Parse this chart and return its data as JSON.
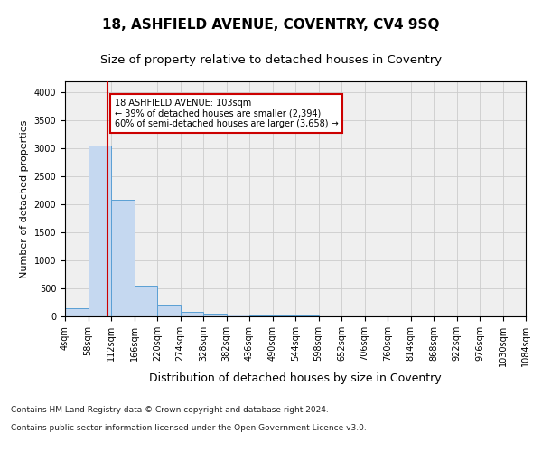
{
  "title1": "18, ASHFIELD AVENUE, COVENTRY, CV4 9SQ",
  "title2": "Size of property relative to detached houses in Coventry",
  "xlabel": "Distribution of detached houses by size in Coventry",
  "ylabel": "Number of detached properties",
  "annotation_line1": "18 ASHFIELD AVENUE: 103sqm",
  "annotation_line2": "← 39% of detached houses are smaller (2,394)",
  "annotation_line3": "60% of semi-detached houses are larger (3,658) →",
  "property_size": 103,
  "footer1": "Contains HM Land Registry data © Crown copyright and database right 2024.",
  "footer2": "Contains public sector information licensed under the Open Government Licence v3.0.",
  "bin_edges": [
    4,
    58,
    112,
    166,
    220,
    274,
    328,
    382,
    436,
    490,
    544,
    598,
    652,
    706,
    760,
    814,
    868,
    922,
    976,
    1030,
    1084
  ],
  "bar_heights": [
    150,
    3050,
    2080,
    550,
    210,
    80,
    50,
    30,
    20,
    15,
    10,
    8,
    6,
    5,
    4,
    3,
    2,
    2,
    2,
    2
  ],
  "bar_color": "#c5d8f0",
  "bar_edge_color": "#5a9fd4",
  "vline_color": "#cc0000",
  "vline_x": 103,
  "annotation_box_color": "#cc0000",
  "ylim": [
    0,
    4200
  ],
  "xlim": [
    4,
    1084
  ],
  "yticks": [
    0,
    500,
    1000,
    1500,
    2000,
    2500,
    3000,
    3500,
    4000
  ],
  "grid_color": "#cccccc",
  "bg_color": "#efefef",
  "title1_fontsize": 11,
  "title2_fontsize": 9.5,
  "xlabel_fontsize": 9,
  "ylabel_fontsize": 8,
  "tick_fontsize": 7,
  "footer_fontsize": 6.5,
  "ann_fontsize": 7
}
